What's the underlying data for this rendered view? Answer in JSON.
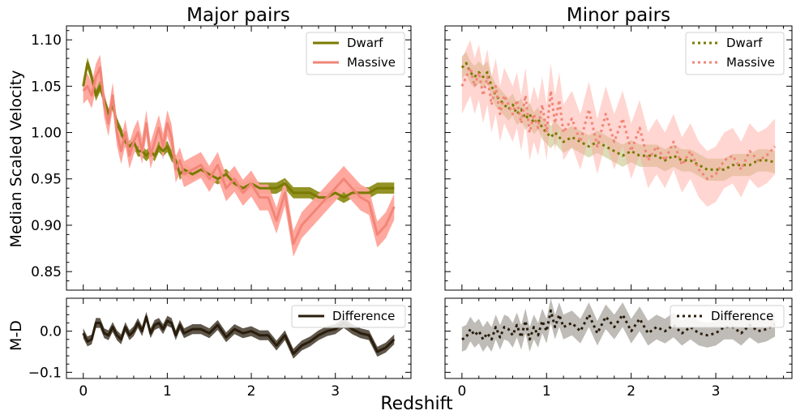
{
  "figure": {
    "xlabel": "Redshift",
    "xticks": [
      0,
      1,
      2,
      3
    ],
    "xlim": [
      -0.2,
      3.9
    ]
  },
  "chart_data": [
    {
      "panel": "major-main",
      "type": "line",
      "title": "Major pairs",
      "ylabel": "Median Scaled Velocity",
      "ylim": [
        0.83,
        1.115
      ],
      "yticks": [
        0.85,
        0.9,
        0.95,
        1.0,
        1.05,
        1.1
      ],
      "ytick_labels": [
        "0.85",
        "0.90",
        "0.95",
        "1.00",
        "1.05",
        "1.10"
      ],
      "legend": "top-right",
      "x": [
        0.0,
        0.05,
        0.1,
        0.15,
        0.2,
        0.25,
        0.3,
        0.35,
        0.4,
        0.45,
        0.5,
        0.55,
        0.6,
        0.65,
        0.7,
        0.75,
        0.8,
        0.85,
        0.9,
        0.95,
        1.0,
        1.05,
        1.1,
        1.15,
        1.2,
        1.3,
        1.4,
        1.5,
        1.6,
        1.7,
        1.8,
        1.9,
        2.0,
        2.1,
        2.2,
        2.3,
        2.4,
        2.5,
        2.6,
        2.7,
        2.8,
        2.9,
        3.0,
        3.1,
        3.2,
        3.3,
        3.4,
        3.5,
        3.6,
        3.7
      ],
      "series": [
        {
          "name": "Dwarf",
          "color": "#808000",
          "style": "solid",
          "values": [
            1.05,
            1.075,
            1.06,
            1.04,
            1.05,
            1.035,
            1.02,
            1.03,
            1.01,
            1.0,
            0.99,
            0.985,
            0.99,
            0.98,
            0.98,
            0.975,
            0.98,
            0.975,
            0.985,
            0.98,
            0.985,
            0.975,
            0.97,
            0.955,
            0.96,
            0.955,
            0.96,
            0.955,
            0.95,
            0.955,
            0.945,
            0.94,
            0.945,
            0.94,
            0.94,
            0.94,
            0.945,
            0.935,
            0.935,
            0.935,
            0.93,
            0.93,
            0.935,
            0.93,
            0.935,
            0.935,
            0.935,
            0.94,
            0.94,
            0.94
          ],
          "band_width": 0.006
        },
        {
          "name": "Massive",
          "color": "#f08070",
          "style": "solid",
          "values": [
            1.045,
            1.05,
            1.04,
            1.06,
            1.07,
            1.03,
            1.01,
            1.04,
            1.0,
            0.98,
            1.0,
            0.975,
            0.99,
            1.0,
            0.98,
            1.01,
            0.975,
            0.99,
            1.005,
            0.985,
            1.01,
            0.995,
            0.96,
            0.97,
            0.955,
            0.96,
            0.965,
            0.95,
            0.965,
            0.94,
            0.95,
            0.935,
            0.945,
            0.93,
            0.93,
            0.905,
            0.935,
            0.88,
            0.9,
            0.91,
            0.92,
            0.93,
            0.94,
            0.95,
            0.94,
            0.93,
            0.925,
            0.89,
            0.9,
            0.92
          ],
          "band_width": 0.014
        }
      ]
    },
    {
      "panel": "minor-main",
      "type": "line",
      "title": "Minor pairs",
      "ylim": [
        0.83,
        1.115
      ],
      "legend": "top-right",
      "x": [
        0.0,
        0.05,
        0.1,
        0.15,
        0.2,
        0.25,
        0.3,
        0.35,
        0.4,
        0.45,
        0.5,
        0.55,
        0.6,
        0.65,
        0.7,
        0.75,
        0.8,
        0.85,
        0.9,
        0.95,
        1.0,
        1.05,
        1.1,
        1.15,
        1.2,
        1.3,
        1.4,
        1.5,
        1.6,
        1.7,
        1.8,
        1.9,
        2.0,
        2.1,
        2.2,
        2.3,
        2.4,
        2.5,
        2.6,
        2.7,
        2.8,
        2.9,
        3.0,
        3.1,
        3.2,
        3.3,
        3.4,
        3.5,
        3.6,
        3.7
      ],
      "series": [
        {
          "name": "Dwarf",
          "color": "#808000",
          "style": "dotted",
          "values": [
            1.07,
            1.075,
            1.065,
            1.06,
            1.065,
            1.06,
            1.065,
            1.05,
            1.04,
            1.035,
            1.03,
            1.025,
            1.03,
            1.02,
            1.025,
            1.015,
            1.02,
            1.01,
            1.015,
            1.005,
            1.0,
            0.995,
            1.0,
            0.995,
            0.99,
            0.995,
            0.99,
            0.985,
            0.99,
            0.985,
            0.98,
            0.975,
            0.98,
            0.975,
            0.975,
            0.975,
            0.97,
            0.975,
            0.97,
            0.97,
            0.965,
            0.96,
            0.96,
            0.96,
            0.965,
            0.965,
            0.965,
            0.97,
            0.97,
            0.968
          ],
          "band_width": 0.012
        },
        {
          "name": "Massive",
          "color": "#f08070",
          "style": "dotted",
          "values": [
            1.05,
            1.06,
            1.07,
            1.05,
            1.065,
            1.04,
            1.06,
            1.03,
            1.05,
            1.02,
            1.04,
            1.03,
            1.02,
            1.035,
            1.01,
            1.04,
            1.0,
            1.02,
            1.005,
            1.03,
            1.0,
            1.045,
            1.01,
            1.035,
            1.0,
            1.015,
            0.99,
            1.025,
            0.985,
            1.02,
            0.99,
            1.015,
            0.98,
            1.005,
            0.97,
            0.985,
            0.97,
            0.99,
            0.965,
            0.98,
            0.96,
            0.95,
            0.955,
            0.97,
            0.975,
            0.96,
            0.98,
            0.97,
            0.975,
            0.985
          ],
          "band_width": 0.03
        }
      ]
    },
    {
      "panel": "major-diff",
      "type": "line",
      "ylabel": "M-D",
      "ylim": [
        -0.115,
        0.08
      ],
      "yticks": [
        -0.1,
        0.0
      ],
      "ytick_labels": [
        "−0.1",
        "0.0"
      ],
      "legend": "top-right",
      "x": [
        0.0,
        0.05,
        0.1,
        0.15,
        0.2,
        0.25,
        0.3,
        0.35,
        0.4,
        0.45,
        0.5,
        0.55,
        0.6,
        0.65,
        0.7,
        0.75,
        0.8,
        0.85,
        0.9,
        0.95,
        1.0,
        1.05,
        1.1,
        1.15,
        1.2,
        1.3,
        1.4,
        1.5,
        1.6,
        1.7,
        1.8,
        1.9,
        2.0,
        2.1,
        2.2,
        2.3,
        2.4,
        2.5,
        2.6,
        2.7,
        2.8,
        2.9,
        3.0,
        3.1,
        3.2,
        3.3,
        3.4,
        3.5,
        3.6,
        3.7
      ],
      "series": [
        {
          "name": "Difference",
          "color": "#2b2010",
          "style": "solid",
          "values": [
            -0.005,
            -0.025,
            -0.02,
            0.02,
            0.02,
            -0.005,
            -0.01,
            0.01,
            -0.01,
            -0.02,
            0.01,
            -0.01,
            0.0,
            0.02,
            0.0,
            0.035,
            -0.005,
            0.015,
            0.02,
            0.005,
            0.025,
            0.02,
            -0.01,
            0.015,
            -0.005,
            0.005,
            0.005,
            -0.005,
            0.015,
            -0.015,
            0.005,
            -0.005,
            0.0,
            -0.01,
            -0.01,
            -0.035,
            -0.01,
            -0.055,
            -0.035,
            -0.025,
            -0.01,
            0.0,
            0.005,
            0.02,
            0.005,
            -0.005,
            -0.01,
            -0.05,
            -0.04,
            -0.02
          ],
          "band_width": 0.012
        }
      ]
    },
    {
      "panel": "minor-diff",
      "type": "line",
      "ylim": [
        -0.115,
        0.08
      ],
      "legend": "top-right",
      "x": [
        0.0,
        0.05,
        0.1,
        0.15,
        0.2,
        0.25,
        0.3,
        0.35,
        0.4,
        0.45,
        0.5,
        0.55,
        0.6,
        0.65,
        0.7,
        0.75,
        0.8,
        0.85,
        0.9,
        0.95,
        1.0,
        1.05,
        1.1,
        1.15,
        1.2,
        1.3,
        1.4,
        1.5,
        1.6,
        1.7,
        1.8,
        1.9,
        2.0,
        2.1,
        2.2,
        2.3,
        2.4,
        2.5,
        2.6,
        2.7,
        2.8,
        2.9,
        3.0,
        3.1,
        3.2,
        3.3,
        3.4,
        3.5,
        3.6,
        3.7
      ],
      "series": [
        {
          "name": "Difference",
          "color": "#2b2010",
          "style": "dotted",
          "values": [
            -0.02,
            -0.015,
            0.005,
            -0.01,
            0.0,
            -0.02,
            -0.005,
            -0.02,
            0.01,
            -0.015,
            0.01,
            0.005,
            -0.01,
            0.015,
            -0.015,
            0.025,
            -0.02,
            0.01,
            -0.01,
            0.025,
            0.0,
            0.05,
            0.01,
            0.04,
            0.01,
            0.02,
            0.0,
            0.04,
            -0.005,
            0.035,
            0.01,
            0.04,
            0.0,
            0.03,
            -0.005,
            0.01,
            0.0,
            0.015,
            -0.005,
            0.01,
            -0.005,
            -0.01,
            -0.005,
            0.01,
            0.01,
            -0.005,
            0.015,
            0.0,
            0.005,
            0.017
          ],
          "band_width": 0.03
        }
      ]
    }
  ]
}
